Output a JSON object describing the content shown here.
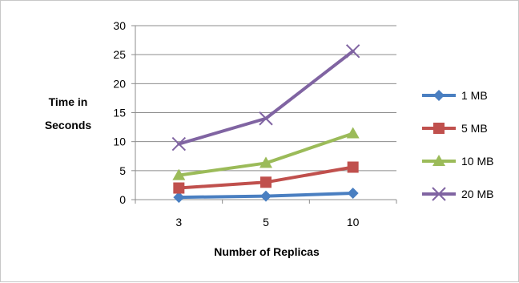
{
  "chart_data": {
    "type": "line",
    "categories": [
      "3",
      "5",
      "10"
    ],
    "ylim": [
      0,
      30
    ],
    "yticks": [
      0,
      5,
      10,
      15,
      20,
      25,
      30
    ],
    "xlabel": "Number of Replicas",
    "ylabel_lines": [
      "Time in",
      "Seconds"
    ],
    "grid": true,
    "legend": "right",
    "series": [
      {
        "name": "1 MB",
        "values": [
          0.4,
          0.6,
          1.1
        ],
        "color": "#4a7fc1",
        "marker": "diamond"
      },
      {
        "name": "5 MB",
        "values": [
          2.0,
          3.0,
          5.6
        ],
        "color": "#c0504d",
        "marker": "square"
      },
      {
        "name": "10 MB",
        "values": [
          4.2,
          6.3,
          11.4
        ],
        "color": "#9bbb59",
        "marker": "triangle"
      },
      {
        "name": "20 MB",
        "values": [
          9.6,
          14.0,
          25.6
        ],
        "color": "#8064a2",
        "marker": "x"
      }
    ]
  }
}
